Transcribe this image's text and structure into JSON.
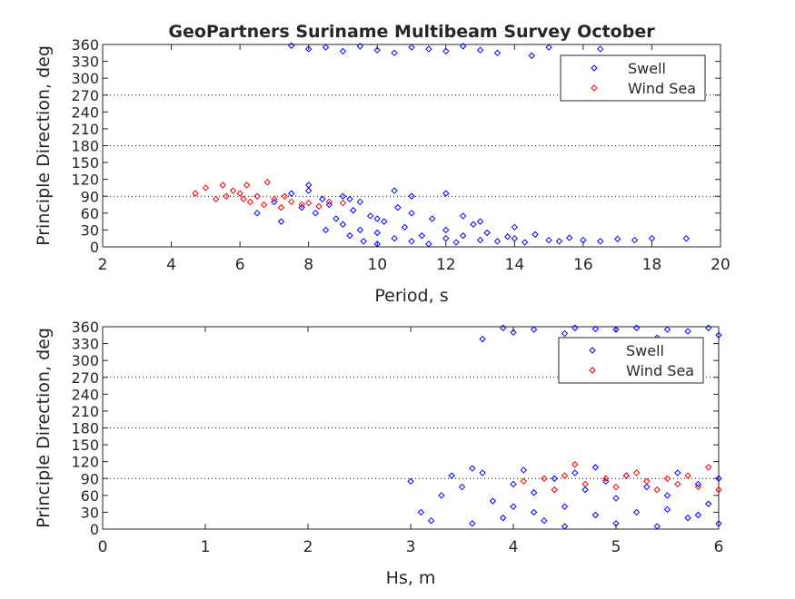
{
  "chart_data": [
    {
      "type": "scatter",
      "title": "GeoPartners Suriname Multibeam Survey October",
      "xlabel": "Period, s",
      "ylabel": "Principle Direction, deg",
      "xlim": [
        2,
        20
      ],
      "ylim": [
        0,
        360
      ],
      "xticks": [
        2,
        4,
        6,
        8,
        10,
        12,
        14,
        16,
        18,
        20
      ],
      "yticks": [
        0,
        30,
        60,
        90,
        120,
        150,
        180,
        210,
        240,
        270,
        300,
        330,
        360
      ],
      "reference_lines": [
        90,
        180,
        270
      ],
      "legend": {
        "placement": "top-right",
        "entries": [
          "Swell",
          "Wind Sea"
        ]
      },
      "series": [
        {
          "name": "Swell",
          "color": "#0000ff",
          "points": [
            [
              7,
              80
            ],
            [
              7.5,
              95
            ],
            [
              7.8,
              70
            ],
            [
              8,
              100
            ],
            [
              8.2,
              60
            ],
            [
              8.4,
              85
            ],
            [
              8.6,
              75
            ],
            [
              8.8,
              50
            ],
            [
              9,
              90
            ],
            [
              9,
              40
            ],
            [
              9.2,
              20
            ],
            [
              9.3,
              65
            ],
            [
              9.5,
              30
            ],
            [
              9.6,
              10
            ],
            [
              9.8,
              55
            ],
            [
              10,
              25
            ],
            [
              10,
              5
            ],
            [
              10.2,
              45
            ],
            [
              10.5,
              15
            ],
            [
              10.6,
              70
            ],
            [
              10.8,
              35
            ],
            [
              11,
              10
            ],
            [
              11,
              90
            ],
            [
              11.3,
              20
            ],
            [
              11.5,
              5
            ],
            [
              11.6,
              50
            ],
            [
              12,
              15
            ],
            [
              12,
              30
            ],
            [
              12.3,
              8
            ],
            [
              12.5,
              20
            ],
            [
              12.8,
              40
            ],
            [
              13,
              12
            ],
            [
              13.2,
              25
            ],
            [
              13.5,
              10
            ],
            [
              13.8,
              18
            ],
            [
              14,
              15
            ],
            [
              14.3,
              8
            ],
            [
              14.6,
              22
            ],
            [
              15,
              12
            ],
            [
              15.3,
              10
            ],
            [
              15.6,
              16
            ],
            [
              16,
              12
            ],
            [
              16.5,
              10
            ],
            [
              17,
              14
            ],
            [
              17.5,
              12
            ],
            [
              18,
              15
            ],
            [
              19,
              15
            ],
            [
              8,
              110
            ],
            [
              9.5,
              80
            ],
            [
              10.5,
              100
            ],
            [
              6.5,
              60
            ],
            [
              7.2,
              45
            ],
            [
              8.5,
              30
            ],
            [
              12,
              95
            ],
            [
              13,
              45
            ],
            [
              11,
              60
            ],
            [
              9.2,
              85
            ],
            [
              10,
              50
            ],
            [
              14,
              35
            ],
            [
              12.5,
              55
            ],
            [
              7.5,
              358
            ],
            [
              8,
              352
            ],
            [
              8.5,
              355
            ],
            [
              9,
              348
            ],
            [
              9.5,
              357
            ],
            [
              10,
              350
            ],
            [
              10.5,
              345
            ],
            [
              11,
              355
            ],
            [
              11.5,
              352
            ],
            [
              12,
              348
            ],
            [
              12.5,
              357
            ],
            [
              13,
              350
            ],
            [
              13.5,
              345
            ],
            [
              14.5,
              340
            ],
            [
              16.5,
              352
            ],
            [
              15,
              355
            ]
          ]
        },
        {
          "name": "Wind Sea",
          "color": "#ff0000",
          "points": [
            [
              4.7,
              95
            ],
            [
              5,
              105
            ],
            [
              5.3,
              85
            ],
            [
              5.5,
              110
            ],
            [
              5.8,
              100
            ],
            [
              6,
              95
            ],
            [
              6.2,
              110
            ],
            [
              6.3,
              80
            ],
            [
              6.5,
              90
            ],
            [
              6.7,
              75
            ],
            [
              6.8,
              115
            ],
            [
              7,
              85
            ],
            [
              7.2,
              70
            ],
            [
              7.5,
              80
            ],
            [
              7.8,
              75
            ],
            [
              8,
              78
            ],
            [
              8.3,
              72
            ],
            [
              8.6,
              80
            ],
            [
              9,
              78
            ],
            [
              5.6,
              90
            ],
            [
              6.1,
              85
            ],
            [
              7.3,
              90
            ]
          ]
        }
      ]
    },
    {
      "type": "scatter",
      "title": "",
      "xlabel": "Hs, m",
      "ylabel": "Principle Direction, deg",
      "xlim": [
        0,
        6
      ],
      "ylim": [
        0,
        360
      ],
      "xticks": [
        0,
        1,
        2,
        3,
        4,
        5,
        6
      ],
      "yticks": [
        0,
        30,
        60,
        90,
        120,
        150,
        180,
        210,
        240,
        270,
        300,
        330,
        360
      ],
      "reference_lines": [
        90,
        180,
        270
      ],
      "legend": {
        "placement": "top-right",
        "entries": [
          "Swell",
          "Wind Sea"
        ]
      },
      "series": [
        {
          "name": "Swell",
          "color": "#0000ff",
          "points": [
            [
              3,
              85
            ],
            [
              3.1,
              30
            ],
            [
              3.2,
              15
            ],
            [
              3.3,
              60
            ],
            [
              3.4,
              95
            ],
            [
              3.5,
              75
            ],
            [
              3.6,
              10
            ],
            [
              3.7,
              100
            ],
            [
              3.8,
              50
            ],
            [
              3.9,
              20
            ],
            [
              4,
              80
            ],
            [
              4.1,
              105
            ],
            [
              4.2,
              65
            ],
            [
              4.3,
              15
            ],
            [
              4.4,
              90
            ],
            [
              4.5,
              40
            ],
            [
              4.5,
              5
            ],
            [
              4.6,
              100
            ],
            [
              4.7,
              70
            ],
            [
              4.8,
              25
            ],
            [
              4.9,
              85
            ],
            [
              5,
              55
            ],
            [
              5,
              10
            ],
            [
              5.1,
              95
            ],
            [
              5.2,
              30
            ],
            [
              5.3,
              75
            ],
            [
              5.4,
              5
            ],
            [
              5.5,
              60
            ],
            [
              5.6,
              100
            ],
            [
              5.7,
              20
            ],
            [
              5.8,
              80
            ],
            [
              5.9,
              45
            ],
            [
              6,
              10
            ],
            [
              6,
              90
            ],
            [
              4.2,
              30
            ],
            [
              5.5,
              35
            ],
            [
              4.8,
              110
            ],
            [
              5.8,
              25
            ],
            [
              3.6,
              108
            ],
            [
              4,
              40
            ],
            [
              3.9,
              358
            ],
            [
              4,
              350
            ],
            [
              4.2,
              355
            ],
            [
              4.5,
              348
            ],
            [
              3.7,
              338
            ],
            [
              4.8,
              356
            ],
            [
              5,
              355
            ],
            [
              5.2,
              358
            ],
            [
              5.5,
              355
            ],
            [
              5.7,
              352
            ],
            [
              5.9,
              358
            ],
            [
              6,
              345
            ],
            [
              5.4,
              340
            ],
            [
              4.6,
              358
            ]
          ]
        },
        {
          "name": "Wind Sea",
          "color": "#ff0000",
          "points": [
            [
              4.1,
              85
            ],
            [
              4.3,
              90
            ],
            [
              4.5,
              95
            ],
            [
              4.6,
              115
            ],
            [
              4.7,
              80
            ],
            [
              4.9,
              90
            ],
            [
              5,
              75
            ],
            [
              5.1,
              95
            ],
            [
              5.3,
              85
            ],
            [
              5.4,
              70
            ],
            [
              5.5,
              90
            ],
            [
              5.6,
              80
            ],
            [
              5.7,
              95
            ],
            [
              5.8,
              75
            ],
            [
              5.9,
              110
            ],
            [
              6,
              70
            ],
            [
              5.2,
              100
            ],
            [
              4.4,
              70
            ]
          ]
        }
      ]
    }
  ]
}
